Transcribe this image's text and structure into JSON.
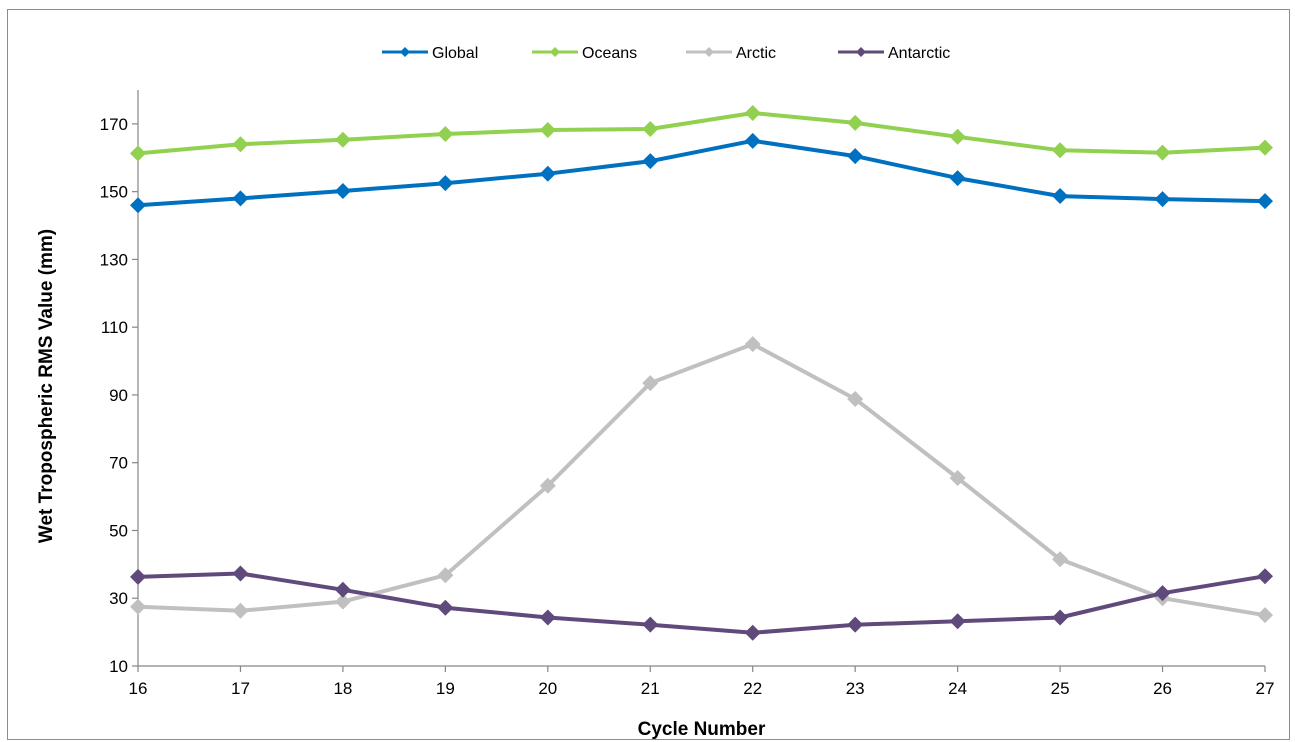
{
  "chart_data": {
    "type": "line",
    "title": "",
    "xlabel": "Cycle Number",
    "ylabel": "Wet Tropospheric RMS Value (mm)",
    "x": [
      16,
      17,
      18,
      19,
      20,
      21,
      22,
      23,
      24,
      25,
      26,
      27
    ],
    "xlim": [
      16,
      27
    ],
    "ylim": [
      10,
      180
    ],
    "yticks": [
      10,
      30,
      50,
      70,
      90,
      110,
      130,
      150,
      170
    ],
    "grid": false,
    "legend_position": "top",
    "series": [
      {
        "name": "Global",
        "color": "#0070C0",
        "values": [
          146,
          148,
          150.2,
          152.5,
          155.3,
          159,
          165,
          160.5,
          154,
          148.7,
          147.8,
          147.2
        ]
      },
      {
        "name": "Oceans",
        "color": "#92D050",
        "values": [
          161.3,
          164,
          165.3,
          167,
          168.2,
          168.5,
          173.2,
          170.3,
          166.2,
          162.2,
          161.5,
          163
        ]
      },
      {
        "name": "Arctic",
        "color": "#C0C0C0",
        "values": [
          27.5,
          26.3,
          29,
          36.8,
          63.2,
          93.5,
          105,
          88.8,
          65.5,
          41.5,
          30,
          25
        ]
      },
      {
        "name": "Antarctic",
        "color": "#604A7B",
        "values": [
          36.3,
          37.3,
          32.5,
          27.2,
          24.3,
          22.2,
          19.8,
          22.2,
          23.2,
          24.3,
          31.5,
          36.5
        ]
      }
    ]
  }
}
